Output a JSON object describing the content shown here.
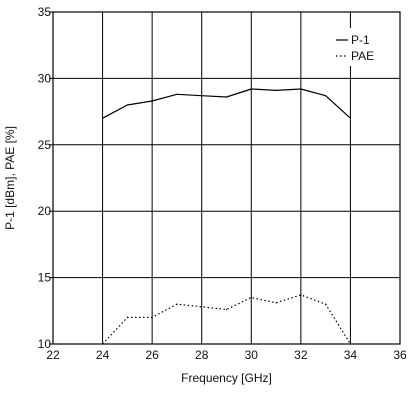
{
  "chart_data": {
    "type": "line",
    "xlabel": "Frequency [GHz]",
    "ylabel": "P-1 [dBm], PAE [%]",
    "xlim": [
      22,
      36
    ],
    "ylim": [
      10,
      35
    ],
    "x_ticks": [
      22,
      24,
      26,
      28,
      30,
      32,
      34,
      36
    ],
    "y_ticks": [
      10,
      15,
      20,
      25,
      30,
      35
    ],
    "grid": true,
    "legend_position": "top-right",
    "series": [
      {
        "name": "P-1",
        "style": "solid",
        "color": "#000000",
        "x": [
          24,
          25,
          26,
          27,
          28,
          29,
          30,
          31,
          32,
          33,
          34
        ],
        "y": [
          27.0,
          28.0,
          28.3,
          28.8,
          28.7,
          28.6,
          29.2,
          29.1,
          29.2,
          28.7,
          27.0
        ]
      },
      {
        "name": "PAE",
        "style": "dotted",
        "color": "#000000",
        "x": [
          24,
          25,
          26,
          27,
          28,
          29,
          30,
          31,
          32,
          33,
          34
        ],
        "y": [
          10.0,
          12.0,
          12.0,
          13.0,
          12.8,
          12.6,
          13.5,
          13.1,
          13.7,
          13.0,
          10.0
        ]
      }
    ]
  }
}
